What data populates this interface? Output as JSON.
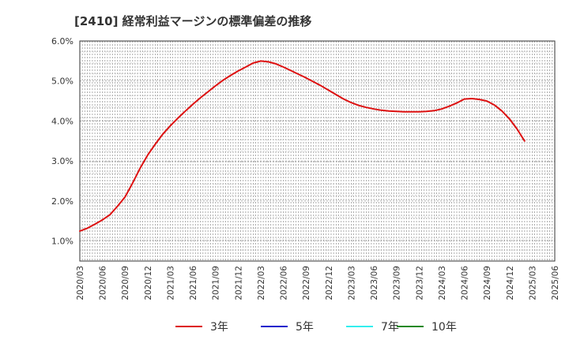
{
  "title": "[2410]  経常利益マージンの標準偏差の推移",
  "chart_data": {
    "type": "line",
    "title": "[2410]  経常利益マージンの標準偏差の推移",
    "xlabel": "",
    "ylabel": "",
    "ylim": [
      0.5,
      6.0
    ],
    "y_ticks": [
      1.0,
      2.0,
      3.0,
      4.0,
      5.0,
      6.0
    ],
    "y_tick_labels": [
      "1.0%",
      "2.0%",
      "3.0%",
      "4.0%",
      "5.0%",
      "6.0%"
    ],
    "x_tick_labels": [
      "2020/03",
      "2020/06",
      "2020/09",
      "2020/12",
      "2021/03",
      "2021/06",
      "2021/09",
      "2021/12",
      "2022/03",
      "2022/06",
      "2022/09",
      "2022/12",
      "2023/03",
      "2023/06",
      "2023/09",
      "2023/12",
      "2024/03",
      "2024/06",
      "2024/09",
      "2024/12",
      "2025/03",
      "2025/06"
    ],
    "grid": true,
    "legend_position": "bottom",
    "series": [
      {
        "name": "3年",
        "color": "#dd1111",
        "points": [
          [
            "2020/03",
            1.25
          ],
          [
            "2020/04",
            1.32
          ],
          [
            "2020/05",
            1.42
          ],
          [
            "2020/06",
            1.53
          ],
          [
            "2020/07",
            1.66
          ],
          [
            "2020/08",
            1.87
          ],
          [
            "2020/09",
            2.1
          ],
          [
            "2020/10",
            2.45
          ],
          [
            "2020/11",
            2.82
          ],
          [
            "2020/12",
            3.15
          ],
          [
            "2021/01",
            3.42
          ],
          [
            "2021/02",
            3.67
          ],
          [
            "2021/03",
            3.88
          ],
          [
            "2021/04",
            4.07
          ],
          [
            "2021/05",
            4.25
          ],
          [
            "2021/06",
            4.42
          ],
          [
            "2021/07",
            4.58
          ],
          [
            "2021/08",
            4.73
          ],
          [
            "2021/09",
            4.88
          ],
          [
            "2021/10",
            5.02
          ],
          [
            "2021/11",
            5.14
          ],
          [
            "2021/12",
            5.25
          ],
          [
            "2022/01",
            5.35
          ],
          [
            "2022/02",
            5.45
          ],
          [
            "2022/03",
            5.5
          ],
          [
            "2022/04",
            5.48
          ],
          [
            "2022/05",
            5.43
          ],
          [
            "2022/06",
            5.35
          ],
          [
            "2022/07",
            5.26
          ],
          [
            "2022/08",
            5.17
          ],
          [
            "2022/09",
            5.08
          ],
          [
            "2022/10",
            4.98
          ],
          [
            "2022/11",
            4.88
          ],
          [
            "2022/12",
            4.77
          ],
          [
            "2023/01",
            4.66
          ],
          [
            "2023/02",
            4.55
          ],
          [
            "2023/03",
            4.46
          ],
          [
            "2023/04",
            4.39
          ],
          [
            "2023/05",
            4.34
          ],
          [
            "2023/06",
            4.3
          ],
          [
            "2023/07",
            4.27
          ],
          [
            "2023/08",
            4.25
          ],
          [
            "2023/09",
            4.24
          ],
          [
            "2023/10",
            4.23
          ],
          [
            "2023/11",
            4.23
          ],
          [
            "2023/12",
            4.23
          ],
          [
            "2024/01",
            4.24
          ],
          [
            "2024/02",
            4.26
          ],
          [
            "2024/03",
            4.3
          ],
          [
            "2024/04",
            4.37
          ],
          [
            "2024/05",
            4.45
          ],
          [
            "2024/06",
            4.55
          ],
          [
            "2024/07",
            4.56
          ],
          [
            "2024/08",
            4.54
          ],
          [
            "2024/09",
            4.5
          ],
          [
            "2024/10",
            4.4
          ],
          [
            "2024/11",
            4.25
          ],
          [
            "2024/12",
            4.05
          ],
          [
            "2025/01",
            3.8
          ],
          [
            "2025/02",
            3.5
          ]
        ]
      },
      {
        "name": "5年",
        "color": "#1a1acc",
        "points": []
      },
      {
        "name": "7年",
        "color": "#33eeee",
        "points": []
      },
      {
        "name": "10年",
        "color": "#228822",
        "points": []
      }
    ]
  }
}
